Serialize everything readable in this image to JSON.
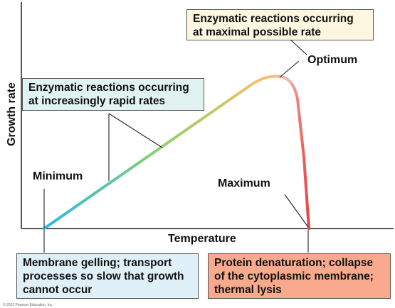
{
  "axes": {
    "x_label": "Temperature",
    "y_label": "Growth rate"
  },
  "points": {
    "minimum": "Minimum",
    "optimum": "Optimum",
    "maximum": "Maximum"
  },
  "callouts": {
    "optimal_rate": [
      "Enzymatic reactions occurring",
      "at maximal possible rate"
    ],
    "increasing_rate": [
      "Enzymatic reactions occurring",
      "at increasingly rapid rates"
    ],
    "minimum_effect": [
      "Membrane gelling; transport",
      "processes so slow that growth",
      "cannot occur"
    ],
    "maximum_effect": [
      "Protein denaturation; collapse",
      "of the cytoplasmic membrane;",
      "thermal lysis"
    ]
  },
  "copyright": "© 2012 Pearson Education, Inc.",
  "colors": {
    "optimal_box": "#fdf7e1",
    "increasing_box": "#e0f3f1",
    "minimum_box": "#dff0f8",
    "maximum_box": "#f8a98e",
    "curve_start": "#2bb8e8",
    "curve_mid": "#8fd16a",
    "curve_peak": "#f3c06a",
    "curve_end": "#e53a3a"
  }
}
